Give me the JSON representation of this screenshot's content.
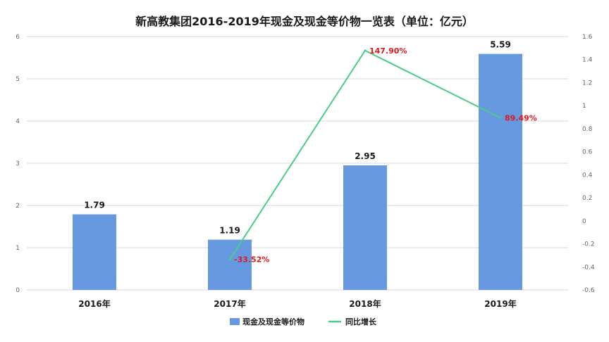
{
  "chart_data": {
    "type": "bar",
    "title": "新高教集团2016-2019年现金及现金等价物一览表（单位：亿元）",
    "categories": [
      "2016年",
      "2017年",
      "2018年",
      "2019年"
    ],
    "series": [
      {
        "name": "现金及现金等价物",
        "type": "bar",
        "axis": "left",
        "values": [
          1.79,
          1.19,
          2.95,
          5.59
        ],
        "labels": [
          "1.79",
          "1.19",
          "2.95",
          "5.59"
        ]
      },
      {
        "name": "同比增长",
        "type": "line",
        "axis": "right",
        "values": [
          null,
          -0.3352,
          1.479,
          0.8949
        ],
        "labels": [
          "",
          "-33.52%",
          "147.90%",
          "89.49%"
        ]
      }
    ],
    "y_left": {
      "min": 0,
      "max": 6,
      "ticks": [
        "0",
        "1",
        "2",
        "3",
        "4",
        "5",
        "6"
      ]
    },
    "y_right": {
      "min": -0.6,
      "max": 1.6,
      "ticks": [
        "-0.6",
        "-0.4",
        "-0.2",
        "0",
        "0.2",
        "0.4",
        "0.6",
        "0.8",
        "1",
        "1.2",
        "1.4",
        "1.6"
      ]
    },
    "grid": true,
    "legend_position": "bottom",
    "colors": {
      "bar": "#6699e0",
      "line": "#4ccc88",
      "line_label": "#e0191e"
    }
  }
}
